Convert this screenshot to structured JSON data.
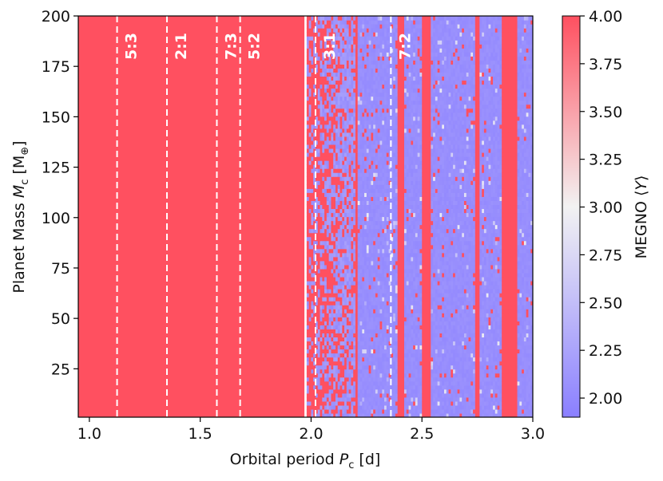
{
  "chart_data": {
    "type": "heatmap",
    "title": "",
    "xlabel": "Orbital period P_c [d]",
    "xlabel_parts": {
      "pre": "Orbital period ",
      "var": "P",
      "sub": "c",
      "post": " [d]"
    },
    "ylabel": "Planet Mass M_c [M⊕]",
    "ylabel_parts": {
      "pre": "Planet Mass ",
      "var": "M",
      "sub": "c",
      "post": " [M",
      "sub2": "⊕",
      "end": "]"
    },
    "xlim": [
      0.95,
      3.0
    ],
    "ylim": [
      1,
      200
    ],
    "x_ticks": [
      1.0,
      1.5,
      2.0,
      2.5,
      3.0
    ],
    "x_tick_labels": [
      "1.0",
      "1.5",
      "2.0",
      "2.5",
      "3.0"
    ],
    "y_ticks": [
      25,
      50,
      75,
      100,
      125,
      150,
      175,
      200
    ],
    "y_tick_labels": [
      "25",
      "50",
      "75",
      "100",
      "125",
      "150",
      "175",
      "200"
    ],
    "colorbar": {
      "label": "MEGNO ⟨Y⟩",
      "label_parts": {
        "pre": "MEGNO ⟨",
        "var": "Y",
        "post": "⟩"
      },
      "min": 1.9,
      "max": 4.0,
      "ticks": [
        2.0,
        2.25,
        2.5,
        2.75,
        3.0,
        3.25,
        3.5,
        3.75,
        4.0
      ],
      "tick_labels": [
        "2.00",
        "2.25",
        "2.50",
        "2.75",
        "3.00",
        "3.25",
        "3.50",
        "3.75",
        "4.00"
      ],
      "colormap": "bwr",
      "color_low": "#8a7fff",
      "color_mid": "#f2f2f2",
      "color_high": "#ff5060"
    },
    "resonances": [
      {
        "label": "5:3",
        "period": 1.125
      },
      {
        "label": "2:1",
        "period": 1.35
      },
      {
        "label": "7:3",
        "period": 1.575
      },
      {
        "label": "5:2",
        "period": 1.68
      },
      {
        "label": "3:1",
        "period": 2.02
      },
      {
        "label": "7:2",
        "period": 2.36
      }
    ],
    "regions": {
      "chaotic_only_below_period": 2.0,
      "stable_majority_above_period": 2.2,
      "stable_value": 2.0,
      "chaotic_value": 4.0
    },
    "chaotic_columns_period_ranges": [
      [
        2.2,
        2.2
      ],
      [
        2.39,
        2.41
      ],
      [
        2.51,
        2.53
      ],
      [
        2.74,
        2.75
      ],
      [
        2.86,
        2.92
      ]
    ]
  }
}
